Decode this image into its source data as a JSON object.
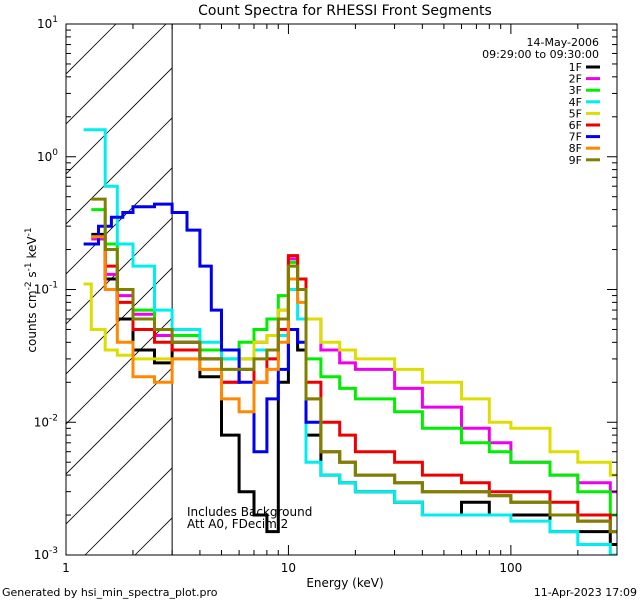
{
  "chart_data": {
    "type": "line",
    "title": "Count Spectra for RHESSI Front Segments",
    "xlabel": "Energy (keV)",
    "ylabel_main": "counts cm",
    "ylabel_sup1": "-2",
    "ylabel_mid": " s",
    "ylabel_sup2": "-1",
    "ylabel_end": " keV",
    "ylabel_sup3": "-1",
    "x_scale": "log",
    "y_scale": "log",
    "xlim": [
      1,
      300
    ],
    "ylim": [
      0.001,
      10
    ],
    "x_tick_labels": [
      {
        "value": 1,
        "label": "1"
      },
      {
        "value": 10,
        "label": "10"
      },
      {
        "value": 100,
        "label": "100"
      }
    ],
    "y_tick_labels": [
      {
        "value": 0.001,
        "base": "10",
        "exp": "-3"
      },
      {
        "value": 0.01,
        "base": "10",
        "exp": "-2"
      },
      {
        "value": 0.1,
        "base": "10",
        "exp": "-1"
      },
      {
        "value": 1,
        "base": "10",
        "exp": "0"
      },
      {
        "value": 10,
        "base": "10",
        "exp": "1"
      }
    ],
    "hatched_region_max_keV": 3,
    "date": "14-May-2006",
    "time_range": "09:29:00 to 09:30:00",
    "annotation_line1": "Includes Background",
    "annotation_line2": "Att A0, FDecim 2",
    "footer_left": "Generated by hsi_min_spectra_plot.pro",
    "footer_right": "11-Apr-2023 17:09",
    "series": [
      {
        "name": "1F",
        "color": "#000000",
        "points": [
          [
            1.3,
            0.26
          ],
          [
            1.5,
            0.12
          ],
          [
            1.7,
            0.06
          ],
          [
            2.0,
            0.035
          ],
          [
            2.5,
            0.028
          ],
          [
            3,
            0.04
          ],
          [
            4,
            0.022
          ],
          [
            5,
            0.008
          ],
          [
            6,
            0.003
          ],
          [
            7,
            0.002
          ],
          [
            8,
            0.0015
          ],
          [
            9,
            0.02
          ],
          [
            10,
            0.05
          ],
          [
            11,
            0.035
          ],
          [
            12,
            0.008
          ],
          [
            14,
            0.004
          ],
          [
            17,
            0.0035
          ],
          [
            20,
            0.003
          ],
          [
            30,
            0.0025
          ],
          [
            40,
            0.002
          ],
          [
            60,
            0.0025
          ],
          [
            80,
            0.002
          ],
          [
            100,
            0.002
          ],
          [
            150,
            0.0015
          ],
          [
            200,
            0.0015
          ],
          [
            280,
            0.0012
          ]
        ]
      },
      {
        "name": "2F",
        "color": "#ee00ee",
        "points": [
          [
            1.3,
            0.24
          ],
          [
            1.5,
            0.13
          ],
          [
            1.7,
            0.09
          ],
          [
            2.0,
            0.065
          ],
          [
            2.5,
            0.045
          ],
          [
            3,
            0.04
          ],
          [
            4,
            0.03
          ],
          [
            5,
            0.02
          ],
          [
            6,
            0.03
          ],
          [
            7,
            0.04
          ],
          [
            8,
            0.045
          ],
          [
            9,
            0.07
          ],
          [
            10,
            0.17
          ],
          [
            11,
            0.12
          ],
          [
            12,
            0.06
          ],
          [
            14,
            0.035
          ],
          [
            17,
            0.028
          ],
          [
            20,
            0.025
          ],
          [
            30,
            0.018
          ],
          [
            40,
            0.013
          ],
          [
            60,
            0.009
          ],
          [
            80,
            0.007
          ],
          [
            100,
            0.005
          ],
          [
            150,
            0.004
          ],
          [
            200,
            0.0035
          ],
          [
            280,
            0.003
          ]
        ]
      },
      {
        "name": "3F",
        "color": "#00ee00",
        "points": [
          [
            1.3,
            0.4
          ],
          [
            1.5,
            0.22
          ],
          [
            1.7,
            0.1
          ],
          [
            2.0,
            0.07
          ],
          [
            2.5,
            0.05
          ],
          [
            3,
            0.045
          ],
          [
            4,
            0.035
          ],
          [
            5,
            0.03
          ],
          [
            6,
            0.04
          ],
          [
            7,
            0.05
          ],
          [
            8,
            0.06
          ],
          [
            9,
            0.09
          ],
          [
            10,
            0.16
          ],
          [
            11,
            0.1
          ],
          [
            12,
            0.03
          ],
          [
            14,
            0.022
          ],
          [
            17,
            0.018
          ],
          [
            20,
            0.015
          ],
          [
            30,
            0.012
          ],
          [
            40,
            0.009
          ],
          [
            60,
            0.007
          ],
          [
            80,
            0.006
          ],
          [
            100,
            0.005
          ],
          [
            150,
            0.004
          ],
          [
            200,
            0.003
          ],
          [
            280,
            0.002
          ]
        ]
      },
      {
        "name": "4F",
        "color": "#00eeee",
        "points": [
          [
            1.2,
            1.6
          ],
          [
            1.5,
            0.6
          ],
          [
            1.7,
            0.22
          ],
          [
            2.0,
            0.15
          ],
          [
            2.5,
            0.07
          ],
          [
            3,
            0.05
          ],
          [
            4,
            0.04
          ],
          [
            5,
            0.03
          ],
          [
            6,
            0.025
          ],
          [
            7,
            0.035
          ],
          [
            8,
            0.03
          ],
          [
            9,
            0.045
          ],
          [
            10,
            0.1
          ],
          [
            11,
            0.06
          ],
          [
            12,
            0.005
          ],
          [
            14,
            0.004
          ],
          [
            17,
            0.0035
          ],
          [
            20,
            0.003
          ],
          [
            30,
            0.0025
          ],
          [
            40,
            0.002
          ],
          [
            60,
            0.002
          ],
          [
            80,
            0.002
          ],
          [
            100,
            0.0018
          ],
          [
            150,
            0.0015
          ],
          [
            200,
            0.0012
          ],
          [
            280,
            0.001
          ]
        ]
      },
      {
        "name": "5F",
        "color": "#dddd00",
        "points": [
          [
            1.2,
            0.11
          ],
          [
            1.3,
            0.05
          ],
          [
            1.5,
            0.035
          ],
          [
            1.7,
            0.032
          ],
          [
            2.0,
            0.03
          ],
          [
            2.5,
            0.03
          ],
          [
            3,
            0.03
          ],
          [
            4,
            0.025
          ],
          [
            5,
            0.025
          ],
          [
            6,
            0.03
          ],
          [
            7,
            0.04
          ],
          [
            8,
            0.045
          ],
          [
            9,
            0.07
          ],
          [
            10,
            0.15
          ],
          [
            11,
            0.1
          ],
          [
            12,
            0.06
          ],
          [
            14,
            0.04
          ],
          [
            17,
            0.035
          ],
          [
            20,
            0.03
          ],
          [
            30,
            0.025
          ],
          [
            40,
            0.02
          ],
          [
            60,
            0.015
          ],
          [
            80,
            0.01
          ],
          [
            100,
            0.009
          ],
          [
            150,
            0.006
          ],
          [
            200,
            0.005
          ],
          [
            280,
            0.004
          ]
        ]
      },
      {
        "name": "6F",
        "color": "#ee0000",
        "points": [
          [
            1.3,
            0.25
          ],
          [
            1.5,
            0.15
          ],
          [
            1.7,
            0.08
          ],
          [
            2.0,
            0.05
          ],
          [
            2.5,
            0.04
          ],
          [
            3,
            0.035
          ],
          [
            4,
            0.03
          ],
          [
            5,
            0.02
          ],
          [
            6,
            0.025
          ],
          [
            7,
            0.02
          ],
          [
            8,
            0.03
          ],
          [
            9,
            0.05
          ],
          [
            10,
            0.18
          ],
          [
            11,
            0.12
          ],
          [
            12,
            0.02
          ],
          [
            14,
            0.01
          ],
          [
            17,
            0.008
          ],
          [
            20,
            0.006
          ],
          [
            30,
            0.005
          ],
          [
            40,
            0.004
          ],
          [
            60,
            0.0035
          ],
          [
            80,
            0.003
          ],
          [
            100,
            0.003
          ],
          [
            150,
            0.0025
          ],
          [
            200,
            0.002
          ],
          [
            280,
            0.0015
          ]
        ]
      },
      {
        "name": "7F",
        "color": "#0000ee",
        "points": [
          [
            1.2,
            0.22
          ],
          [
            1.4,
            0.3
          ],
          [
            1.6,
            0.35
          ],
          [
            1.8,
            0.38
          ],
          [
            2.0,
            0.42
          ],
          [
            2.5,
            0.44
          ],
          [
            3,
            0.38
          ],
          [
            3.5,
            0.28
          ],
          [
            4,
            0.15
          ],
          [
            4.5,
            0.07
          ],
          [
            5,
            0.035
          ],
          [
            6,
            0.02
          ],
          [
            7,
            0.006
          ],
          [
            8,
            0.015
          ],
          [
            9,
            0.025
          ],
          [
            10,
            0.05
          ],
          [
            11,
            0.04
          ],
          [
            12,
            0.01
          ],
          [
            14,
            0.006
          ],
          [
            17,
            0.005
          ],
          [
            20,
            0.004
          ],
          [
            30,
            0.0035
          ],
          [
            40,
            0.003
          ],
          [
            60,
            0.003
          ],
          [
            80,
            0.0028
          ],
          [
            100,
            0.0025
          ],
          [
            150,
            0.002
          ],
          [
            200,
            0.0018
          ],
          [
            280,
            0.0015
          ]
        ]
      },
      {
        "name": "8F",
        "color": "#ff8800",
        "points": [
          [
            1.3,
            0.25
          ],
          [
            1.5,
            0.1
          ],
          [
            1.7,
            0.04
          ],
          [
            2.0,
            0.022
          ],
          [
            2.5,
            0.02
          ],
          [
            3,
            0.03
          ],
          [
            4,
            0.025
          ],
          [
            5,
            0.015
          ],
          [
            6,
            0.012
          ],
          [
            7,
            0.02
          ],
          [
            8,
            0.025
          ],
          [
            9,
            0.04
          ],
          [
            10,
            0.12
          ],
          [
            11,
            0.08
          ],
          [
            12,
            0.015
          ],
          [
            14,
            0.006
          ],
          [
            17,
            0.005
          ],
          [
            20,
            0.004
          ],
          [
            30,
            0.0035
          ],
          [
            40,
            0.003
          ],
          [
            60,
            0.003
          ],
          [
            80,
            0.0028
          ],
          [
            100,
            0.0025
          ],
          [
            150,
            0.002
          ],
          [
            200,
            0.0018
          ],
          [
            280,
            0.0015
          ]
        ]
      },
      {
        "name": "9F",
        "color": "#808000",
        "points": [
          [
            1.3,
            0.48
          ],
          [
            1.5,
            0.2
          ],
          [
            1.7,
            0.1
          ],
          [
            2.0,
            0.06
          ],
          [
            2.5,
            0.05
          ],
          [
            3,
            0.04
          ],
          [
            4,
            0.03
          ],
          [
            5,
            0.025
          ],
          [
            6,
            0.025
          ],
          [
            7,
            0.03
          ],
          [
            8,
            0.035
          ],
          [
            9,
            0.06
          ],
          [
            10,
            0.15
          ],
          [
            11,
            0.1
          ],
          [
            12,
            0.015
          ],
          [
            14,
            0.006
          ],
          [
            17,
            0.005
          ],
          [
            20,
            0.004
          ],
          [
            30,
            0.0035
          ],
          [
            40,
            0.003
          ],
          [
            60,
            0.003
          ],
          [
            80,
            0.0028
          ],
          [
            100,
            0.0025
          ],
          [
            150,
            0.002
          ],
          [
            200,
            0.0018
          ],
          [
            280,
            0.0015
          ]
        ]
      }
    ]
  }
}
